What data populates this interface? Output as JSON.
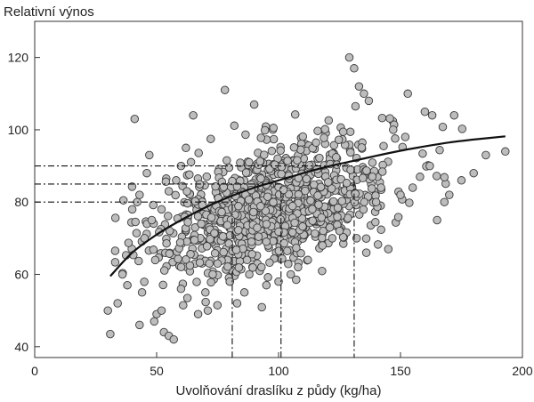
{
  "chart_data": {
    "type": "scatter",
    "title": "",
    "xlabel": "Uvolňování draslíku z půdy (kg/ha)",
    "ylabel": "Relativní výnos",
    "xlim": [
      0,
      200
    ],
    "ylim": [
      37,
      130
    ],
    "xticks": [
      0,
      50,
      100,
      150,
      200
    ],
    "yticks": [
      40,
      60,
      80,
      100,
      120
    ],
    "grid": false,
    "trend_curve": {
      "description": "logarithmic-type fit",
      "points": [
        [
          31,
          59.5
        ],
        [
          40,
          66
        ],
        [
          50,
          71
        ],
        [
          60,
          75
        ],
        [
          70,
          78.5
        ],
        [
          80,
          81.5
        ],
        [
          90,
          84
        ],
        [
          100,
          86
        ],
        [
          110,
          88
        ],
        [
          120,
          89.8
        ],
        [
          130,
          91.3
        ],
        [
          140,
          92.8
        ],
        [
          150,
          94.2
        ],
        [
          160,
          95.4
        ],
        [
          170,
          96.5
        ],
        [
          180,
          97.3
        ],
        [
          193,
          98.2
        ]
      ]
    },
    "reference_lines": [
      {
        "yield": 80,
        "release": 81
      },
      {
        "yield": 85,
        "release": 101
      },
      {
        "yield": 90,
        "release": 131
      }
    ],
    "outliers": [
      [
        30,
        50
      ],
      [
        31,
        43.5
      ],
      [
        34,
        52
      ],
      [
        36,
        60
      ],
      [
        38,
        57
      ],
      [
        41,
        103
      ],
      [
        42,
        80
      ],
      [
        43,
        46
      ],
      [
        44,
        55
      ],
      [
        47,
        93
      ],
      [
        49,
        47
      ],
      [
        50,
        49
      ],
      [
        52,
        50
      ],
      [
        53,
        44
      ],
      [
        55,
        43
      ],
      [
        57,
        42
      ],
      [
        60,
        56
      ],
      [
        65,
        104
      ],
      [
        67,
        49
      ],
      [
        71,
        50
      ],
      [
        78,
        111
      ],
      [
        90,
        107
      ],
      [
        93,
        62
      ],
      [
        129,
        120
      ],
      [
        131,
        117
      ],
      [
        133,
        112
      ],
      [
        135,
        110
      ],
      [
        137,
        108
      ],
      [
        153,
        110
      ],
      [
        160,
        105
      ],
      [
        163,
        104
      ],
      [
        172,
        104
      ],
      [
        165,
        75
      ],
      [
        168,
        80
      ],
      [
        170,
        82
      ],
      [
        175,
        86
      ],
      [
        180,
        88
      ],
      [
        185,
        93
      ],
      [
        193,
        94
      ],
      [
        145,
        67
      ],
      [
        136,
        66
      ],
      [
        132,
        70
      ],
      [
        150,
        82
      ],
      [
        155,
        84
      ],
      [
        158,
        87
      ],
      [
        162,
        90
      ],
      [
        147,
        100
      ],
      [
        70,
        55
      ],
      [
        73,
        60
      ],
      [
        75,
        63
      ],
      [
        80,
        58
      ],
      [
        83,
        52
      ],
      [
        86,
        55
      ],
      [
        88,
        60
      ],
      [
        95,
        57
      ],
      [
        100,
        58
      ],
      [
        105,
        60
      ],
      [
        108,
        62
      ],
      [
        112,
        64
      ],
      [
        118,
        68
      ],
      [
        122,
        70
      ],
      [
        125,
        72
      ],
      [
        140,
        80
      ],
      [
        142,
        84
      ],
      [
        45,
        70
      ],
      [
        48,
        75
      ],
      [
        52,
        78
      ],
      [
        55,
        83
      ],
      [
        58,
        86
      ],
      [
        60,
        90
      ],
      [
        62,
        95
      ],
      [
        46,
        88
      ],
      [
        40,
        78
      ],
      [
        43,
        82
      ]
    ],
    "cluster": {
      "n": 1000,
      "x_mean": 98,
      "x_sd": 24,
      "y_intercept": 70,
      "y_slope": 0.19,
      "y_sd": 8.3,
      "x_min": 33,
      "x_max": 190,
      "y_min": 40,
      "y_max": 121,
      "seed": 20240611
    }
  }
}
